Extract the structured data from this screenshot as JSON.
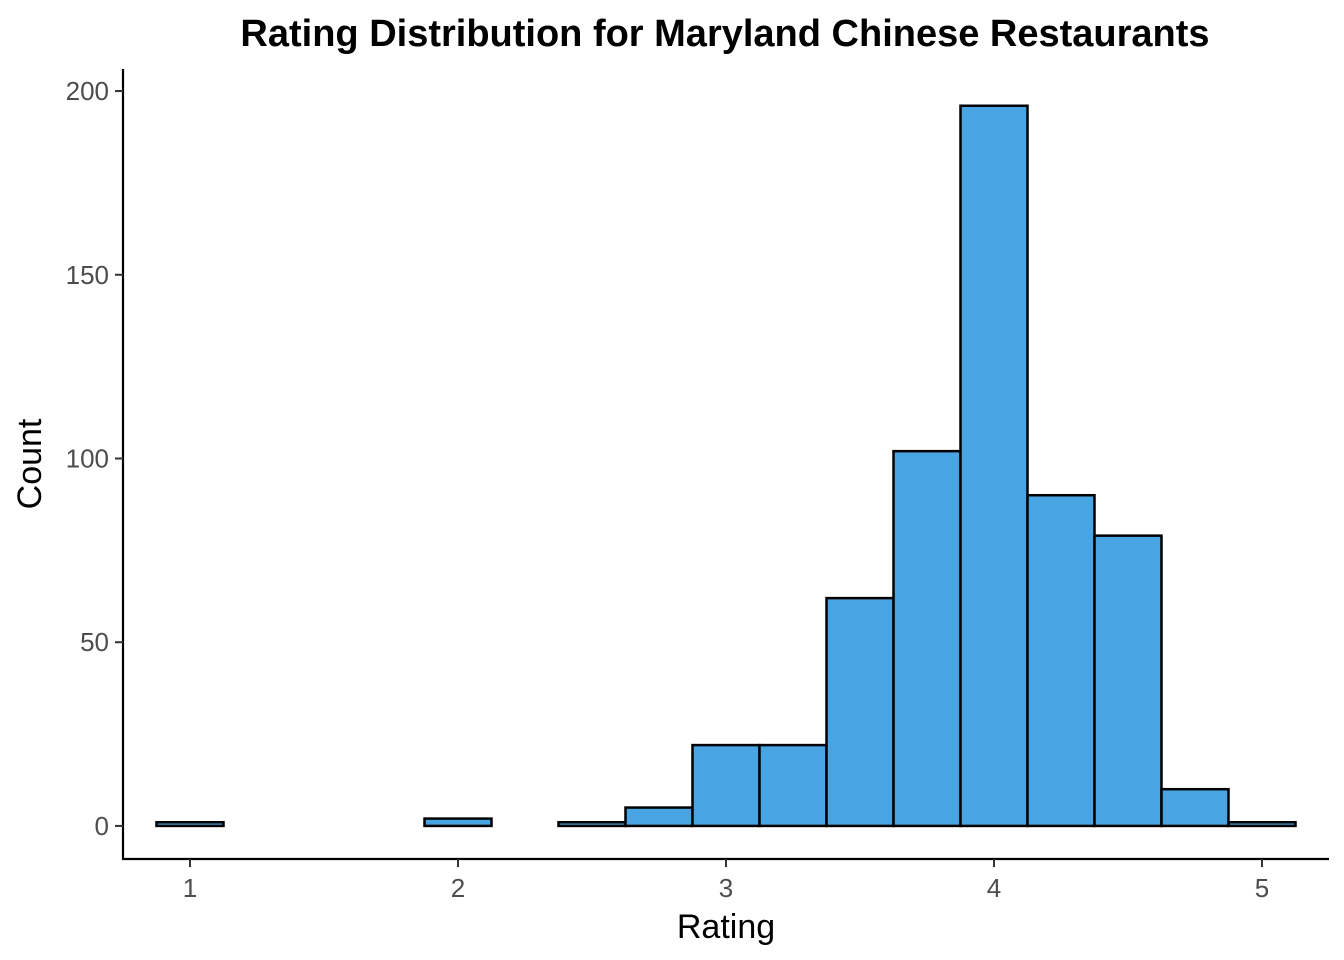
{
  "chart_data": {
    "type": "bar",
    "title": "Rating Distribution for Maryland Chinese Restaurants",
    "xlabel": "Rating",
    "ylabel": "Count",
    "bin_width": 0.25,
    "bin_centers": [
      1,
      1.25,
      1.5,
      1.75,
      2,
      2.25,
      2.5,
      2.75,
      3,
      3.25,
      3.5,
      3.75,
      4,
      4.25,
      4.5,
      4.75,
      5
    ],
    "values": [
      1,
      0,
      0,
      0,
      2,
      0,
      1,
      5,
      22,
      22,
      62,
      102,
      196,
      90,
      79,
      10,
      1
    ],
    "xlim": [
      0.75,
      5.25
    ],
    "ylim": [
      -9,
      206
    ],
    "x_ticks": [
      1,
      2,
      3,
      4,
      5
    ],
    "x_tick_labels": [
      "1",
      "2",
      "3",
      "4",
      "5"
    ],
    "y_ticks": [
      0,
      50,
      100,
      150,
      200
    ],
    "y_tick_labels": [
      "0",
      "50",
      "100",
      "150",
      "200"
    ],
    "grid": false,
    "legend": "none",
    "bar_color": "#48A4E2",
    "bar_outline_color": "#000000"
  }
}
